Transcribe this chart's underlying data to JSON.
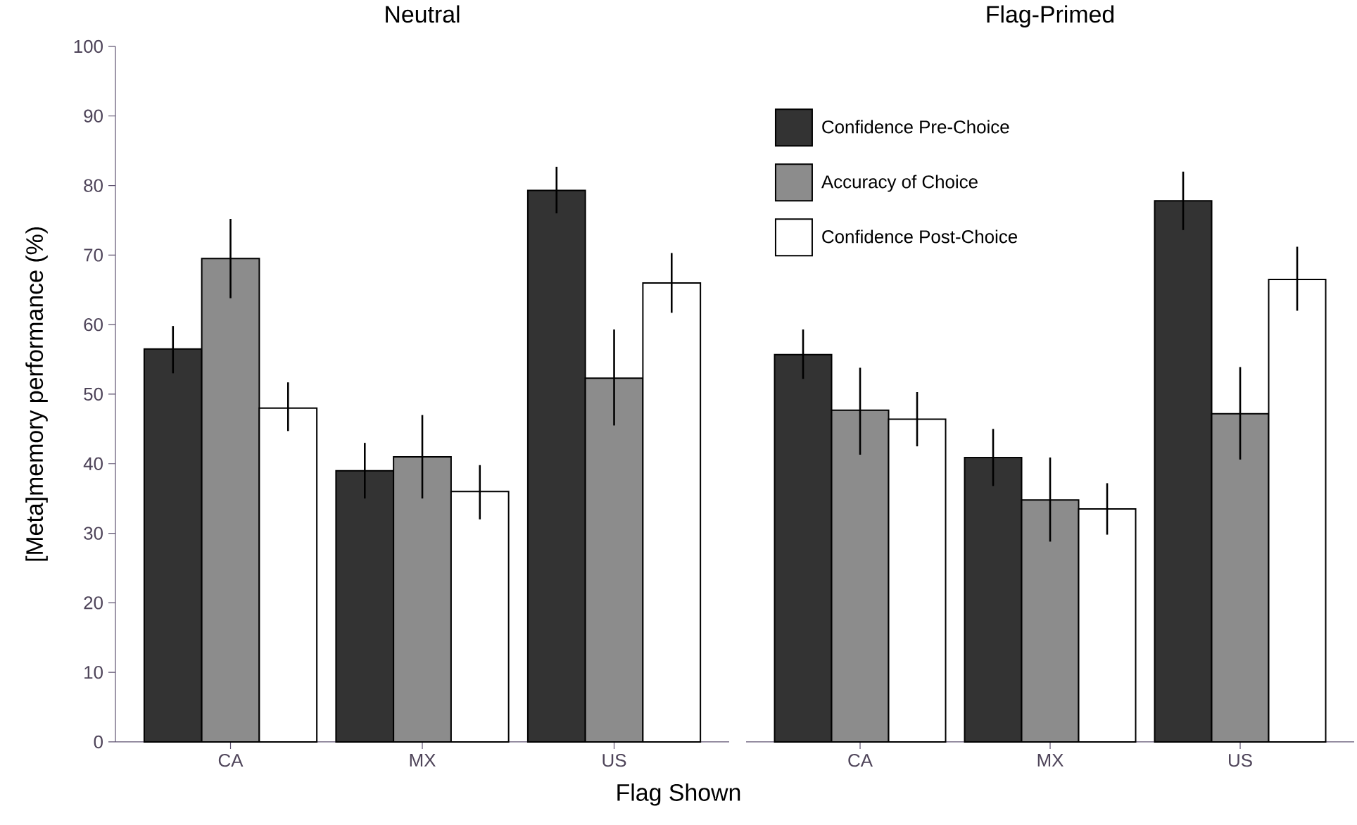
{
  "chart_data": [
    {
      "type": "bar",
      "title": "Neutral",
      "xlabel": "Flag Shown",
      "ylabel": "[Meta]memory performance (%)",
      "categories": [
        "CA",
        "MX",
        "US"
      ],
      "ylim": [
        0,
        100
      ],
      "yticks": [
        0,
        10,
        20,
        30,
        40,
        50,
        60,
        70,
        80,
        90,
        100
      ],
      "series": [
        {
          "color": "#333333",
          "values": [
            56.5,
            39,
            79.3
          ],
          "errors": [
            [
              53,
              59.8
            ],
            [
              35,
              43
            ],
            [
              76,
              82.7
            ]
          ]
        },
        {
          "color": "#8c8c8c",
          "values": [
            69.5,
            41,
            52.3
          ],
          "errors": [
            [
              63.8,
              75.2
            ],
            [
              35,
              47
            ],
            [
              45.5,
              59.3
            ]
          ]
        },
        {
          "color": "#ffffff",
          "values": [
            48,
            36,
            66
          ],
          "errors": [
            [
              44.7,
              51.7
            ],
            [
              32,
              39.8
            ],
            [
              61.7,
              70.3
            ]
          ]
        }
      ]
    },
    {
      "type": "bar",
      "title": "Flag-Primed",
      "categories": [
        "CA",
        "MX",
        "US"
      ],
      "ylim": [
        0,
        100
      ],
      "tick_labels": "x",
      "legend": "top left",
      "series": [
        {
          "name": "Confidence Pre-Choice",
          "color": "#333333",
          "values": [
            55.7,
            40.9,
            77.8
          ],
          "errors": [
            [
              52.2,
              59.3
            ],
            [
              36.8,
              45
            ],
            [
              73.6,
              82
            ]
          ]
        },
        {
          "name": "Accuracy of Choice",
          "color": "#8c8c8c",
          "values": [
            47.7,
            34.8,
            47.2
          ],
          "errors": [
            [
              41.3,
              53.8
            ],
            [
              28.8,
              40.9
            ],
            [
              40.6,
              53.9
            ]
          ]
        },
        {
          "name": "Confidence Post-Choice",
          "color": "#ffffff",
          "values": [
            46.4,
            33.5,
            66.5
          ],
          "errors": [
            [
              42.5,
              50.3
            ],
            [
              29.8,
              37.2
            ],
            [
              62,
              71.2
            ]
          ]
        }
      ]
    }
  ]
}
